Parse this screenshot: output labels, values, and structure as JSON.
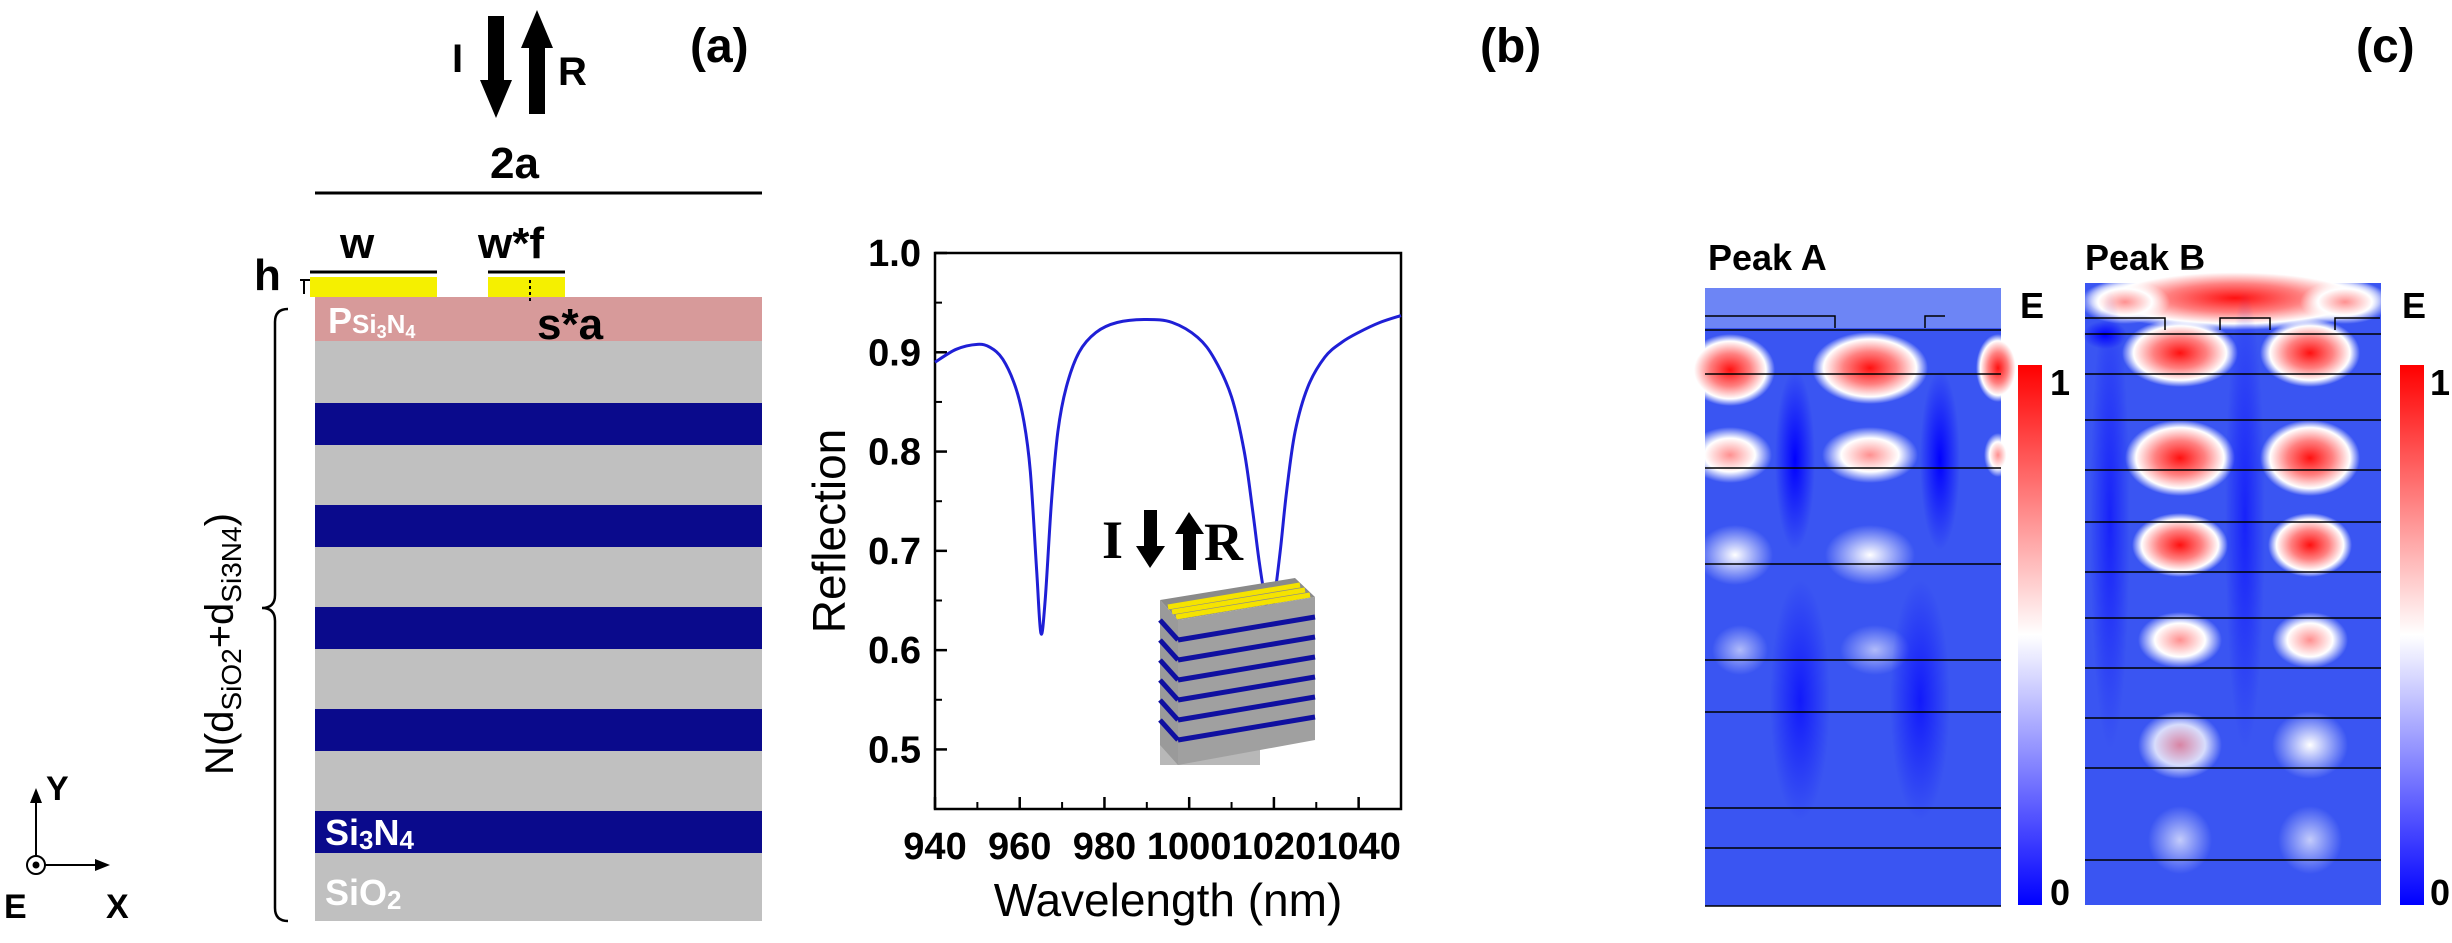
{
  "panel_a": {
    "label": "(a)",
    "incident": "I",
    "reflected": "R",
    "period": "2a",
    "w": "w",
    "wf": "w*f",
    "h": "h",
    "sa": "s*a",
    "p_main": "P",
    "p_sub": "Si",
    "p_sub2": "3",
    "p_sub3": "N",
    "p_sub4": "4",
    "n_prefix": "N(d",
    "n_sio2": "SiO2",
    "n_plus": "+d",
    "n_si3n4": "Si3N4",
    "n_close": ")",
    "si3n4_a": "Si",
    "si3n4_b": "3",
    "si3n4_c": "N",
    "si3n4_d": "4",
    "sio2_a": "SiO",
    "sio2_b": "2",
    "axis_y": "Y",
    "axis_x": "X",
    "axis_e": "E",
    "colors": {
      "si3n4": "#0a0a8c",
      "sio2": "#c0c0c0",
      "top_layer": "#d79a9a",
      "gold": "#f5f000"
    }
  },
  "panel_b": {
    "label": "(b)",
    "inset_i": "I",
    "inset_r": "R"
  },
  "panel_c": {
    "label": "(c)",
    "peak_a": "Peak A",
    "peak_b": "Peak B",
    "field_label": "E",
    "scale_max": "1",
    "scale_min": "0"
  },
  "chart_data": {
    "type": "line",
    "title": "",
    "xlabel": "Wavelength (nm)",
    "ylabel": "Reflection",
    "xlim": [
      940,
      1050
    ],
    "ylim": [
      0.44,
      1.0
    ],
    "xticks": [
      940,
      960,
      980,
      1000,
      1020,
      1040
    ],
    "yticks": [
      0.5,
      0.6,
      0.7,
      0.8,
      0.9,
      1.0
    ],
    "xtick_labels": [
      "940",
      "960",
      "980",
      "1000",
      "1020",
      "1040"
    ],
    "ytick_labels": [
      "0.5",
      "0.6",
      "0.7",
      "0.8",
      "0.9",
      "1.0"
    ],
    "series": [
      {
        "name": "Reflection",
        "color": "#1f1fd6",
        "x": [
          940,
          945,
          950,
          953,
          956,
          959,
          961,
          962.5,
          964,
          965,
          966,
          967.5,
          969,
          971,
          974,
          978,
          983,
          990,
          996,
          1002,
          1006,
          1010,
          1013,
          1015,
          1016.5,
          1018,
          1019,
          1020,
          1021.5,
          1023,
          1025,
          1028,
          1032,
          1036,
          1040,
          1045,
          1050
        ],
        "y": [
          0.89,
          0.903,
          0.908,
          0.905,
          0.893,
          0.865,
          0.83,
          0.78,
          0.68,
          0.617,
          0.65,
          0.75,
          0.82,
          0.865,
          0.9,
          0.92,
          0.93,
          0.933,
          0.93,
          0.915,
          0.893,
          0.855,
          0.8,
          0.74,
          0.69,
          0.65,
          0.638,
          0.65,
          0.7,
          0.76,
          0.82,
          0.865,
          0.895,
          0.91,
          0.92,
          0.93,
          0.937
        ]
      }
    ],
    "grid": false,
    "legend": "none"
  }
}
